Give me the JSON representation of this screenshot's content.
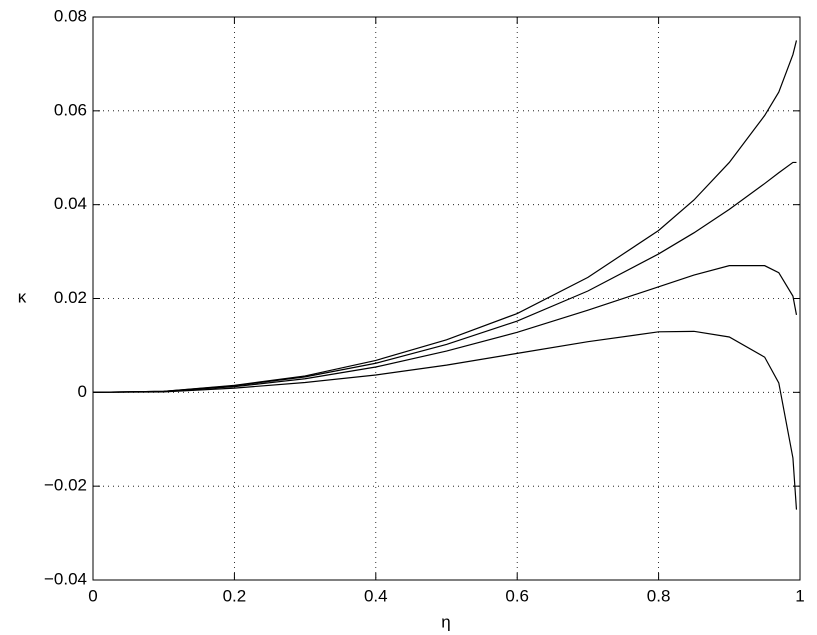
{
  "chart_data": {
    "type": "line",
    "x_label": "η",
    "y_label": "κ",
    "x": [
      0,
      0.1,
      0.2,
      0.3,
      0.4,
      0.5,
      0.6,
      0.7,
      0.8,
      0.85,
      0.9,
      0.95,
      0.97,
      0.99,
      0.995
    ],
    "series": [
      {
        "color": "#000000",
        "values": [
          0,
          0.0002,
          0.0015,
          0.0035,
          0.0068,
          0.0112,
          0.0168,
          0.0245,
          0.0345,
          0.041,
          0.049,
          0.059,
          0.064,
          0.072,
          0.075
        ]
      },
      {
        "color": "#000000",
        "values": [
          0,
          0.0002,
          0.0014,
          0.0033,
          0.0062,
          0.0102,
          0.0152,
          0.0216,
          0.0295,
          0.034,
          0.039,
          0.0445,
          0.0468,
          0.049,
          0.049
        ]
      },
      {
        "color": "#000000",
        "values": [
          0,
          0.0002,
          0.0012,
          0.0029,
          0.0054,
          0.0088,
          0.0128,
          0.0175,
          0.0225,
          0.025,
          0.027,
          0.027,
          0.0255,
          0.0205,
          0.0165
        ]
      },
      {
        "color": "#000000",
        "values": [
          0,
          0.0001,
          0.0009,
          0.0021,
          0.0037,
          0.0058,
          0.0083,
          0.0108,
          0.0129,
          0.013,
          0.0118,
          0.0075,
          0.002,
          -0.014,
          -0.025
        ]
      }
    ],
    "xlim": [
      0,
      1
    ],
    "xticks": [
      0,
      0.2,
      0.4,
      0.6,
      0.8,
      1
    ],
    "ylim": [
      -0.04,
      0.08
    ],
    "yticks": [
      {
        "value": -0.04,
        "label": "−0.04"
      },
      {
        "value": -0.02,
        "label": "−0.02"
      },
      0,
      0.02,
      0.04,
      0.06,
      0.08
    ],
    "grid": true
  }
}
